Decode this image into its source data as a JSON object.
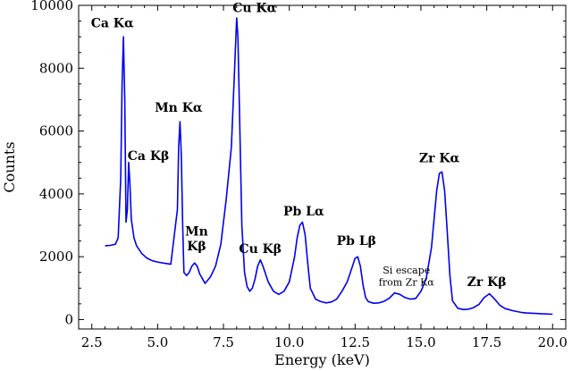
{
  "chart_data": {
    "type": "line",
    "title": "",
    "xlabel": "Energy (keV)",
    "ylabel": "Counts",
    "xlim": [
      2.0,
      20.5
    ],
    "ylim": [
      -300,
      10000
    ],
    "grid": false,
    "x_ticks": [
      2.5,
      5.0,
      7.5,
      10.0,
      12.5,
      15.0,
      17.5,
      20.0
    ],
    "x_tick_labels": [
      "2.5",
      "5.0",
      "7.5",
      "10.0",
      "12.5",
      "15.0",
      "17.5",
      "20.0"
    ],
    "y_ticks": [
      0,
      2000,
      4000,
      6000,
      8000,
      10000
    ],
    "y_tick_labels": [
      "0",
      "2000",
      "4000",
      "6000",
      "8000",
      "10000"
    ],
    "line_color": "#0000ee",
    "series": [
      {
        "x": [
          3.0,
          3.2,
          3.4,
          3.5,
          3.6,
          3.65,
          3.7,
          3.75,
          3.8,
          3.85,
          3.9,
          3.95,
          4.0,
          4.05,
          4.1,
          4.2,
          4.4,
          4.6,
          4.8,
          5.0,
          5.2,
          5.5,
          5.75,
          5.8,
          5.85,
          5.9,
          5.95,
          6.0,
          6.1,
          6.2,
          6.3,
          6.4,
          6.5,
          6.6,
          6.7,
          6.8,
          7.0,
          7.2,
          7.4,
          7.6,
          7.8,
          7.9,
          8.0,
          8.05,
          8.1,
          8.2,
          8.3,
          8.4,
          8.5,
          8.6,
          8.7,
          8.8,
          8.9,
          9.0,
          9.2,
          9.4,
          9.6,
          9.8,
          10.0,
          10.2,
          10.3,
          10.4,
          10.5,
          10.6,
          10.7,
          10.8,
          11.0,
          11.2,
          11.4,
          11.6,
          11.8,
          12.0,
          12.2,
          12.4,
          12.5,
          12.6,
          12.7,
          12.8,
          12.9,
          13.0,
          13.2,
          13.4,
          13.6,
          13.8,
          14.0,
          14.2,
          14.4,
          14.6,
          14.8,
          15.0,
          15.2,
          15.4,
          15.5,
          15.6,
          15.7,
          15.8,
          15.9,
          16.0,
          16.1,
          16.2,
          16.4,
          16.6,
          16.8,
          17.0,
          17.2,
          17.4,
          17.6,
          17.8,
          18.0,
          18.2,
          18.5,
          18.8,
          19.0,
          19.5,
          20.0
        ],
        "y": [
          2350,
          2360,
          2400,
          2600,
          4500,
          7500,
          9000,
          7000,
          3100,
          3500,
          5000,
          4300,
          3200,
          2900,
          2600,
          2350,
          2100,
          1950,
          1870,
          1830,
          1800,
          1760,
          3500,
          5500,
          6300,
          5200,
          3000,
          1500,
          1400,
          1500,
          1700,
          1800,
          1700,
          1450,
          1300,
          1150,
          1350,
          1700,
          2400,
          3800,
          5500,
          7500,
          9600,
          9000,
          7000,
          3000,
          1500,
          1050,
          900,
          1000,
          1300,
          1700,
          1900,
          1700,
          1200,
          900,
          800,
          900,
          1200,
          2000,
          2600,
          3000,
          3100,
          2700,
          1800,
          1000,
          650,
          570,
          530,
          560,
          650,
          900,
          1200,
          1700,
          1950,
          2000,
          1700,
          1100,
          700,
          570,
          520,
          530,
          580,
          680,
          850,
          800,
          700,
          650,
          670,
          900,
          1300,
          2300,
          3200,
          4100,
          4650,
          4700,
          4100,
          2800,
          1400,
          600,
          360,
          320,
          330,
          380,
          480,
          700,
          820,
          650,
          450,
          350,
          280,
          230,
          210,
          190,
          170
        ]
      }
    ],
    "annotations": [
      {
        "label": "Ca Kα",
        "x": 3.28,
        "y": 9300,
        "style": "bold"
      },
      {
        "label": "Ca Kβ",
        "x": 4.65,
        "y": 5080,
        "style": "bold"
      },
      {
        "label": "Mn Kα",
        "x": 5.8,
        "y": 6620,
        "style": "bold"
      },
      {
        "label": "Mn",
        "x": 6.48,
        "y": 2680,
        "style": "bold"
      },
      {
        "label": "Kβ",
        "x": 6.48,
        "y": 2200,
        "style": "bold"
      },
      {
        "label": "Cu Kα",
        "x": 8.68,
        "y": 9780,
        "style": "bold"
      },
      {
        "label": "Cu Kβ",
        "x": 8.9,
        "y": 2120,
        "style": "bold"
      },
      {
        "label": "Pb Lα",
        "x": 10.55,
        "y": 3320,
        "style": "bold"
      },
      {
        "label": "Pb Lβ",
        "x": 12.55,
        "y": 2380,
        "style": "bold"
      },
      {
        "label": "Si escape",
        "x": 14.45,
        "y": 1470,
        "style": "small"
      },
      {
        "label": "from Zr Kα",
        "x": 14.45,
        "y": 1080,
        "style": "small"
      },
      {
        "label": "Zr Kα",
        "x": 15.7,
        "y": 5000,
        "style": "bold"
      },
      {
        "label": "Zr Kβ",
        "x": 17.5,
        "y": 1070,
        "style": "bold"
      }
    ]
  }
}
